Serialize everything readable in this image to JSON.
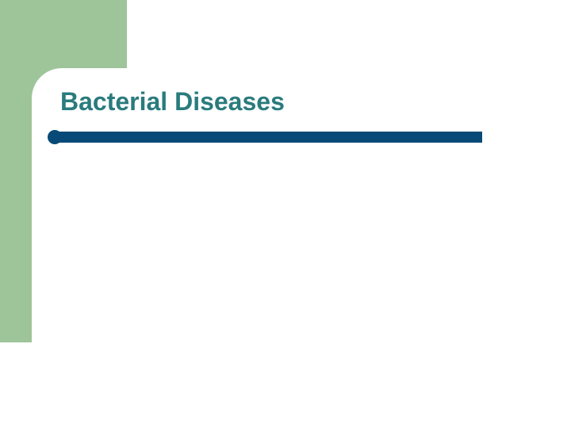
{
  "slide": {
    "title": "Bacterial Diseases",
    "title_color": "#2a7b7d",
    "title_fontsize": 32,
    "sidebar_color": "#9ec49a",
    "divider_color": "#084a77",
    "background_color": "#ffffff"
  }
}
